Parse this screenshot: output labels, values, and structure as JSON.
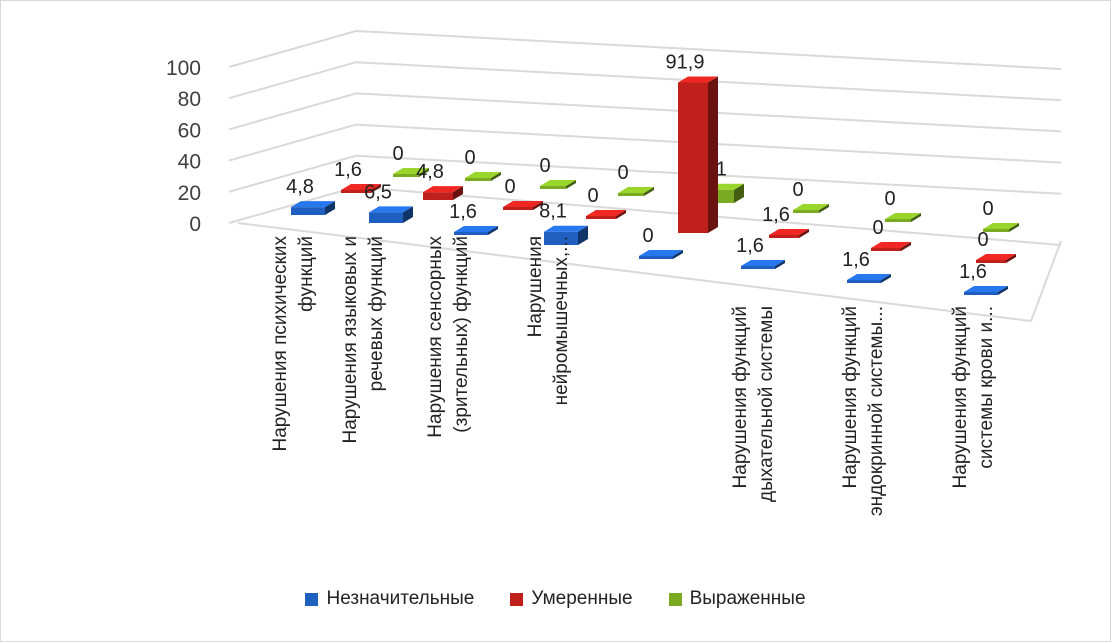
{
  "chart_data": {
    "type": "bar",
    "subtype": "3d-column",
    "categories": [
      [
        "Нарушения психических",
        "функций"
      ],
      [
        "Нарушения языковых и",
        "речевых функций"
      ],
      [
        "Нарушения сенсорных",
        "(зрительных) функций"
      ],
      [
        "Нарушения",
        "нейромышечных,..."
      ],
      [],
      [
        "Нарушения функций",
        "дыхательной системы"
      ],
      [
        "Нарушения функций",
        "эндокринной системы..."
      ],
      [
        "Нарушения функций",
        "системы крови и..."
      ]
    ],
    "series": [
      {
        "name": "Незначительные",
        "color": "#1f5fbf",
        "values": [
          4.8,
          6.5,
          1.6,
          8.1,
          0,
          1.6,
          1.6,
          1.6
        ],
        "labels": [
          "4,8",
          "6,5",
          "1,6",
          "8,1",
          "0",
          "1,6",
          "1,6",
          "1,6"
        ]
      },
      {
        "name": "Умеренные",
        "color": "#c0201c",
        "values": [
          1.6,
          4.8,
          0,
          0,
          91.9,
          1.6,
          0,
          0
        ],
        "labels": [
          "1,6",
          "4,8",
          "0",
          "0",
          "91,9",
          "1,6",
          "0",
          "0"
        ]
      },
      {
        "name": "Выраженные",
        "color": "#7aaa22",
        "values": [
          0,
          0,
          0,
          0,
          8.1,
          0,
          0,
          0
        ],
        "labels": [
          "0",
          "0",
          "0",
          "0",
          "8,1",
          "0",
          "0",
          "0"
        ]
      }
    ],
    "yticks": [
      "0",
      "20",
      "40",
      "60",
      "80",
      "100"
    ],
    "ylim": [
      0,
      100
    ],
    "grid": true,
    "legend": "bottom"
  }
}
